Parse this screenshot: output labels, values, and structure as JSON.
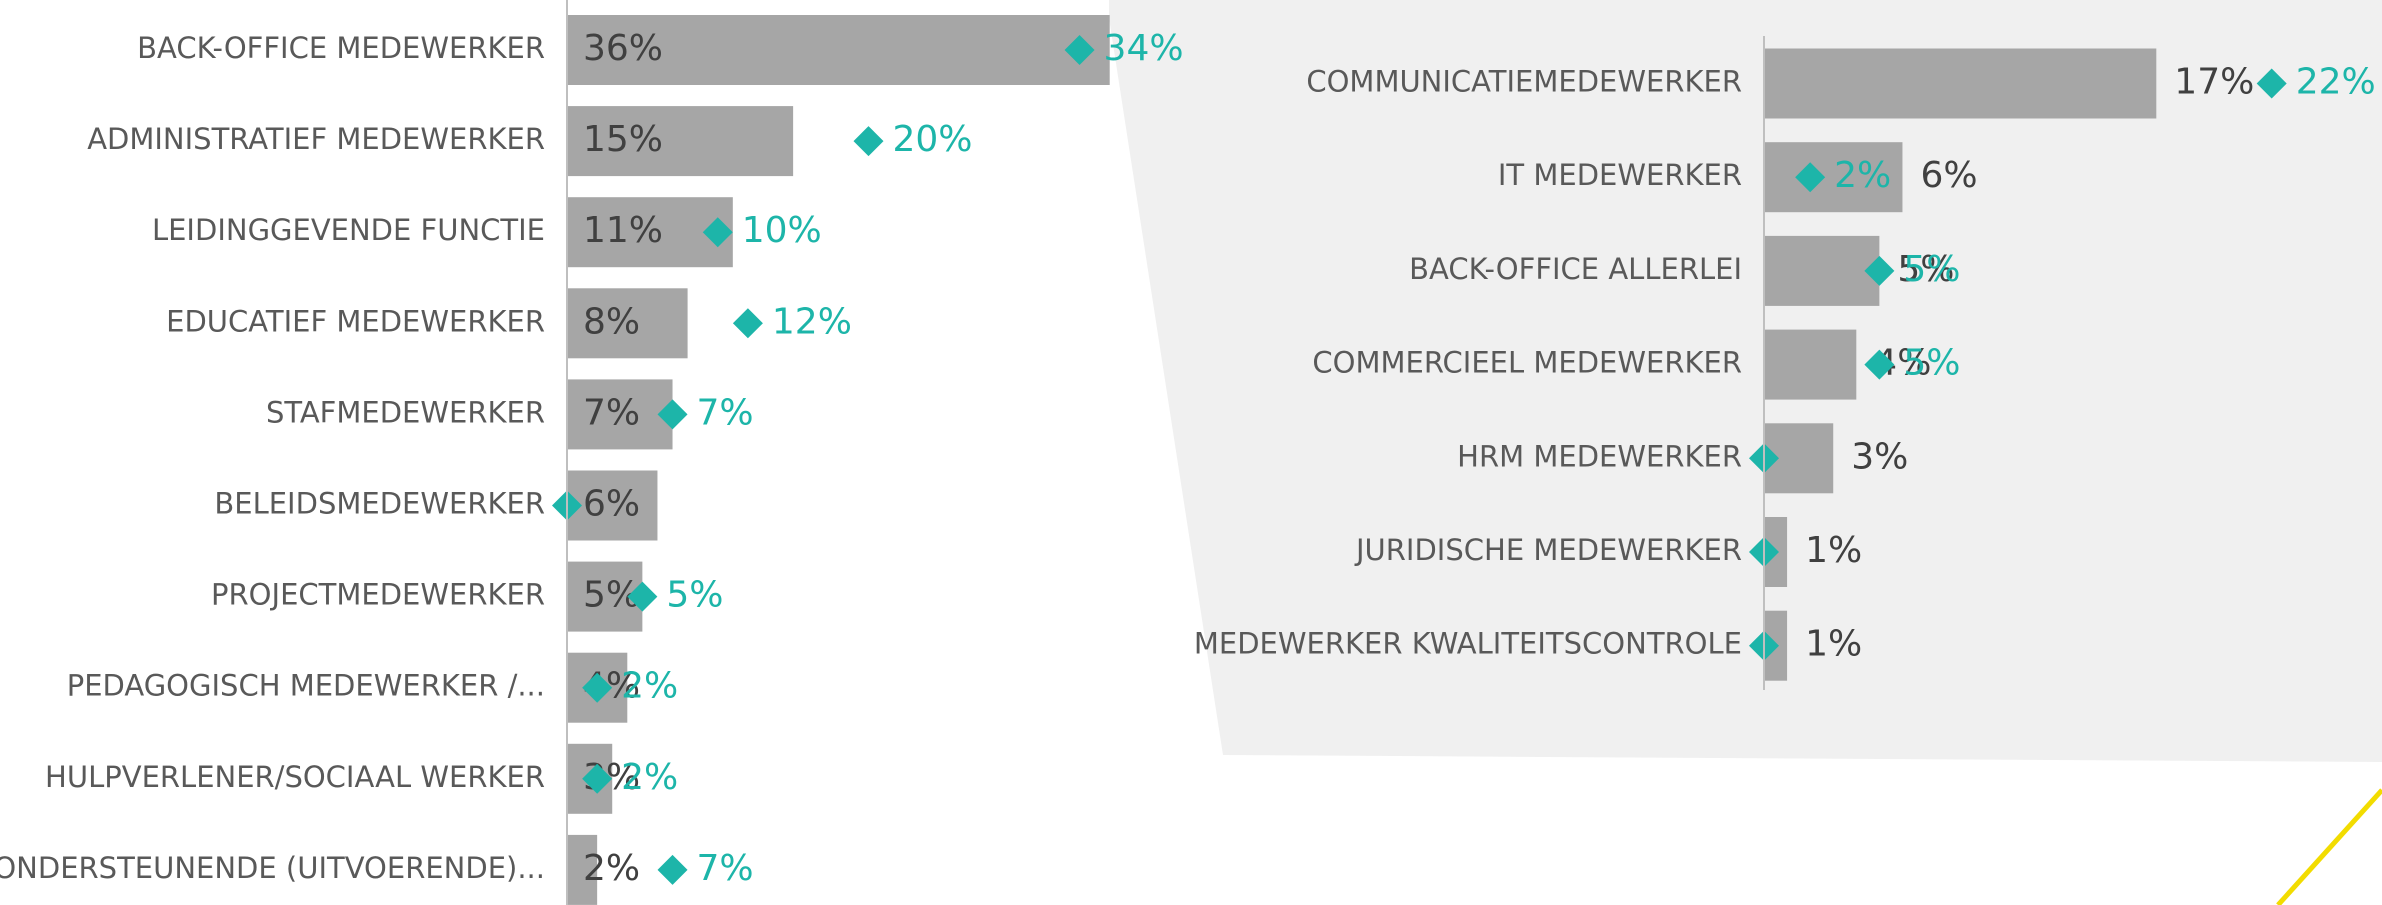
{
  "chart_data": [
    {
      "type": "bar",
      "categories": [
        "BACK-OFFICE MEDEWERKER",
        "ADMINISTRATIEF MEDEWERKER",
        "LEIDINGGEVENDE FUNCTIE",
        "EDUCATIEF MEDEWERKER",
        "STAFMEDEWERKER",
        "BELEIDSMEDEWERKER",
        "PROJECTMEDEWERKER",
        "PEDAGOGISCH MEDEWERKER /...",
        "HULPVERLENER/SOCIAAL WERKER",
        "ONDERSTEUNENDE (UITVOERENDE)..."
      ],
      "xlim": [
        0,
        40
      ],
      "series": [
        {
          "color": "#a6a6a6",
          "values": [
            36,
            15,
            11,
            8,
            7,
            6,
            5,
            4,
            3,
            2
          ],
          "value_labels": [
            "36%",
            "15%",
            "11%",
            "8%",
            "7%",
            "6%",
            "5%",
            "4%",
            "3%",
            "2%"
          ]
        },
        {
          "color": "#1db5a9",
          "values": [
            34,
            20,
            10,
            12,
            7,
            0,
            5,
            2,
            2,
            7
          ],
          "value_labels": [
            "34%",
            "20%",
            "10%",
            "12%",
            "7%",
            null,
            "5%",
            "2%",
            "2%",
            "7%"
          ]
        }
      ]
    },
    {
      "type": "bar",
      "categories": [
        "COMMUNICATIEMEDEWERKER",
        "IT MEDEWERKER",
        "BACK-OFFICE ALLERLEI",
        "COMMERCIEEL MEDEWERKER",
        "HRM MEDEWERKER",
        "JURIDISCHE MEDEWERKER",
        "MEDEWERKER KWALITEITSCONTROLE"
      ],
      "xlim": [
        0,
        26
      ],
      "series": [
        {
          "color": "#a6a6a6",
          "values": [
            17,
            6,
            5,
            4,
            3,
            1,
            1
          ],
          "value_labels": [
            "17%",
            "6%",
            "5%",
            "4%",
            "3%",
            "1%",
            "1%"
          ]
        },
        {
          "color": "#1db5a9",
          "values": [
            22,
            2,
            5,
            5,
            0,
            0,
            0
          ],
          "value_labels": [
            "22%",
            "2%",
            "5%",
            "5%",
            null,
            null,
            null
          ]
        }
      ]
    }
  ]
}
